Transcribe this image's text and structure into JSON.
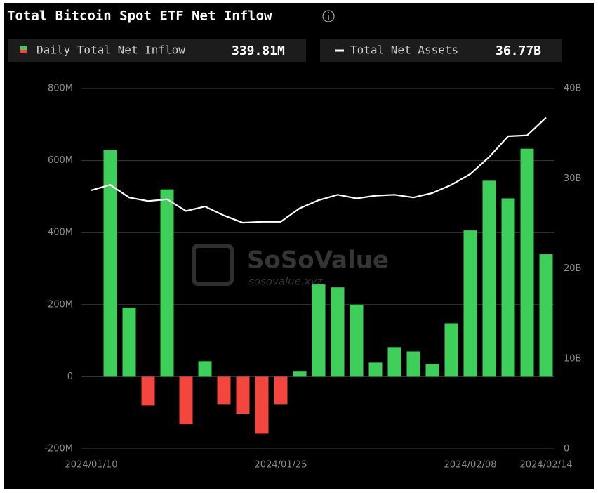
{
  "chart_data": {
    "type": "bar",
    "title": "Total Bitcoin Spot ETF Net Inflow",
    "watermark": [
      "SoSoValue",
      "sosovalue.xyz"
    ],
    "categories": [
      "2024/01/10",
      null,
      null,
      null,
      null,
      null,
      null,
      null,
      null,
      null,
      "2024/01/25",
      null,
      null,
      null,
      null,
      null,
      null,
      null,
      null,
      null,
      "2024/02/08",
      null,
      null,
      null,
      "2024/02/14"
    ],
    "series": [
      {
        "name": "Daily Total Net Inflow",
        "latest_label": "339.81M",
        "type": "bar",
        "axis": "y",
        "color": "#3ecf5a",
        "negative_color": "#f2463f",
        "values": [
          null,
          629,
          192,
          -80,
          520,
          -132,
          43,
          -76,
          -103,
          -158,
          -76,
          16,
          256,
          248,
          200,
          39,
          82,
          70,
          35,
          148,
          406,
          544,
          495,
          633,
          339.81
        ]
      },
      {
        "name": "Total Net Assets",
        "latest_label": "36.77B",
        "type": "line",
        "axis": "y2",
        "color": "#ffffff",
        "values": [
          28.7,
          29.3,
          27.9,
          27.5,
          27.7,
          26.4,
          26.9,
          25.9,
          25.1,
          25.2,
          25.2,
          26.7,
          27.6,
          28.2,
          27.8,
          28.1,
          28.2,
          27.9,
          28.4,
          29.3,
          30.5,
          32.4,
          34.7,
          34.8,
          36.77
        ]
      }
    ],
    "ylim": [
      -200,
      800
    ],
    "yticks": [
      {
        "value": -200,
        "label": "-200M"
      },
      0,
      {
        "value": 200,
        "label": "200M"
      },
      {
        "value": 400,
        "label": "400M"
      },
      {
        "value": 600,
        "label": "600M"
      },
      {
        "value": 800,
        "label": "800M"
      }
    ],
    "y2lim": [
      0,
      40
    ],
    "y2ticks": [
      0,
      {
        "value": 10,
        "label": "10B"
      },
      {
        "value": 20,
        "label": "20B"
      },
      {
        "value": 30,
        "label": "30B"
      },
      {
        "value": 40,
        "label": "40B"
      }
    ],
    "grid": true
  }
}
